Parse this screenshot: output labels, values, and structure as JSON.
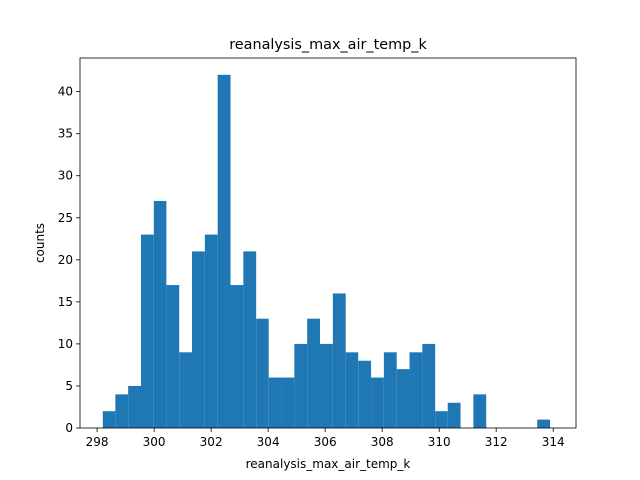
{
  "chart_data": {
    "type": "bar",
    "title": "reanalysis_max_air_temp_k",
    "xlabel": "reanalysis_max_air_temp_k",
    "ylabel": "counts",
    "color": "#1f77b4",
    "xlim": [
      297.4,
      314.8
    ],
    "ylim": [
      0,
      44
    ],
    "xticks": [
      298,
      300,
      302,
      304,
      306,
      308,
      310,
      312,
      314
    ],
    "yticks": [
      0,
      5,
      10,
      15,
      20,
      25,
      30,
      35,
      40
    ],
    "grid": false,
    "bins": [
      {
        "x0": 298.2,
        "x1": 298.64,
        "count": 2
      },
      {
        "x0": 298.64,
        "x1": 299.09,
        "count": 4
      },
      {
        "x0": 299.09,
        "x1": 299.54,
        "count": 5
      },
      {
        "x0": 299.54,
        "x1": 299.99,
        "count": 23
      },
      {
        "x0": 299.99,
        "x1": 300.43,
        "count": 27
      },
      {
        "x0": 300.43,
        "x1": 300.88,
        "count": 17
      },
      {
        "x0": 300.88,
        "x1": 301.33,
        "count": 9
      },
      {
        "x0": 301.33,
        "x1": 301.78,
        "count": 21
      },
      {
        "x0": 301.78,
        "x1": 302.23,
        "count": 23
      },
      {
        "x0": 302.23,
        "x1": 302.68,
        "count": 42
      },
      {
        "x0": 302.68,
        "x1": 303.13,
        "count": 17
      },
      {
        "x0": 303.13,
        "x1": 303.58,
        "count": 21
      },
      {
        "x0": 303.58,
        "x1": 304.02,
        "count": 13
      },
      {
        "x0": 304.02,
        "x1": 304.47,
        "count": 6
      },
      {
        "x0": 304.47,
        "x1": 304.92,
        "count": 6
      },
      {
        "x0": 304.92,
        "x1": 305.37,
        "count": 10
      },
      {
        "x0": 305.37,
        "x1": 305.82,
        "count": 13
      },
      {
        "x0": 305.82,
        "x1": 306.27,
        "count": 10
      },
      {
        "x0": 306.27,
        "x1": 306.72,
        "count": 16
      },
      {
        "x0": 306.72,
        "x1": 307.16,
        "count": 9
      },
      {
        "x0": 307.16,
        "x1": 307.61,
        "count": 8
      },
      {
        "x0": 307.61,
        "x1": 308.06,
        "count": 6
      },
      {
        "x0": 308.06,
        "x1": 308.51,
        "count": 9
      },
      {
        "x0": 308.51,
        "x1": 308.96,
        "count": 7
      },
      {
        "x0": 308.96,
        "x1": 309.41,
        "count": 9
      },
      {
        "x0": 309.41,
        "x1": 309.86,
        "count": 10
      },
      {
        "x0": 309.86,
        "x1": 310.3,
        "count": 2
      },
      {
        "x0": 310.3,
        "x1": 310.75,
        "count": 3
      },
      {
        "x0": 310.75,
        "x1": 311.2,
        "count": 0
      },
      {
        "x0": 311.2,
        "x1": 311.65,
        "count": 4
      },
      {
        "x0": 311.65,
        "x1": 312.1,
        "count": 0
      },
      {
        "x0": 312.1,
        "x1": 312.55,
        "count": 0
      },
      {
        "x0": 312.55,
        "x1": 313.0,
        "count": 0
      },
      {
        "x0": 313.0,
        "x1": 313.44,
        "count": 0
      },
      {
        "x0": 313.44,
        "x1": 313.89,
        "count": 1
      }
    ]
  }
}
